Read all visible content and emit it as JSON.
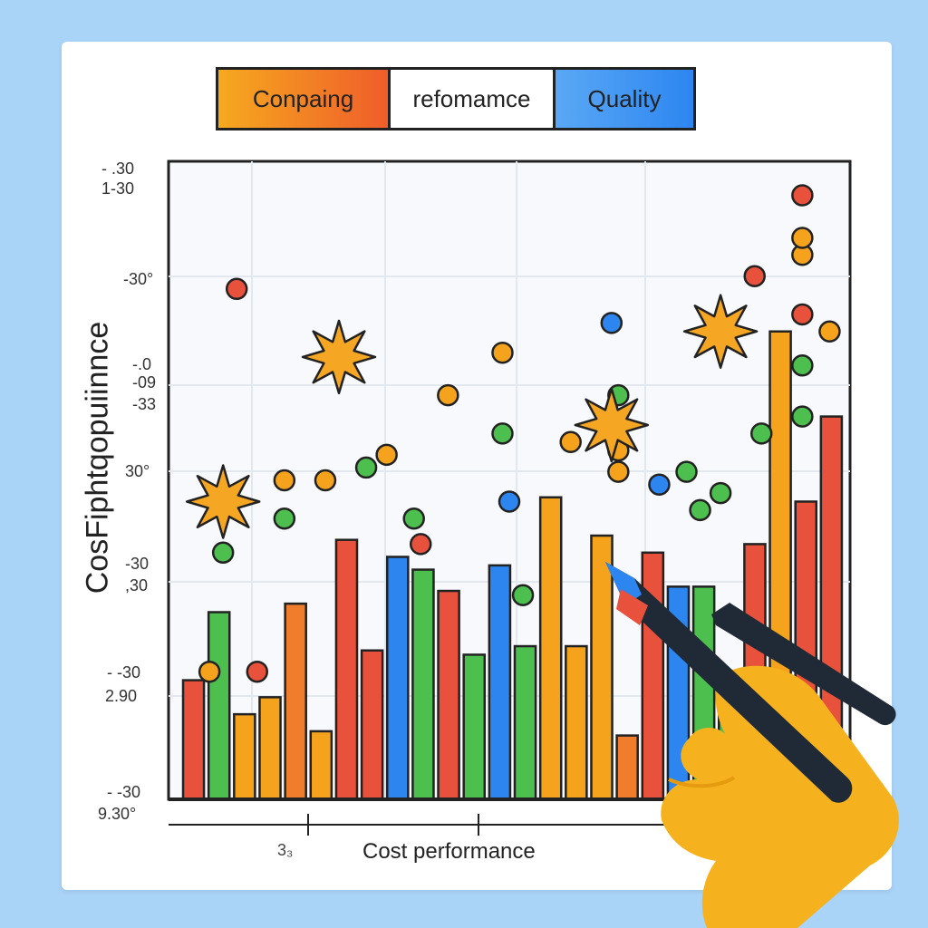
{
  "legend": {
    "items": [
      {
        "label": "Conpaing",
        "color": "#f39a22"
      },
      {
        "label": "refomamce",
        "color": "#ffffff"
      },
      {
        "label": "Quality",
        "color": "#2d86f0"
      }
    ]
  },
  "chart_data": {
    "type": "bar",
    "title": "",
    "xlabel": "Cost performance",
    "ylabel": "CosFiphtqopuiinnce",
    "x_tick_label": "3₃",
    "y_tick_labels": [
      "- .30",
      "1-30",
      "-30°",
      "-.0",
      "-09",
      "-33",
      "30°",
      "-30",
      ",30",
      "- -30",
      "2.90",
      "- -30",
      "9.30°"
    ],
    "bars": [
      {
        "color": "#e8513b",
        "value": 28
      },
      {
        "color": "#4cbf4f",
        "value": 44
      },
      {
        "color": "#f5a31c",
        "value": 20
      },
      {
        "color": "#f5a31c",
        "value": 24
      },
      {
        "color": "#ef7d2b",
        "value": 46
      },
      {
        "color": "#f5a31c",
        "value": 16
      },
      {
        "color": "#e8513b",
        "value": 61
      },
      {
        "color": "#e8513b",
        "value": 35
      },
      {
        "color": "#2d86f0",
        "value": 57
      },
      {
        "color": "#4cbf4f",
        "value": 54
      },
      {
        "color": "#e8513b",
        "value": 49
      },
      {
        "color": "#4cbf4f",
        "value": 34
      },
      {
        "color": "#2d86f0",
        "value": 55
      },
      {
        "color": "#4cbf4f",
        "value": 36
      },
      {
        "color": "#f5a31c",
        "value": 71
      },
      {
        "color": "#f5a31c",
        "value": 36
      },
      {
        "color": "#f5a31c",
        "value": 62
      },
      {
        "color": "#ef7d2b",
        "value": 15
      },
      {
        "color": "#e8513b",
        "value": 58
      },
      {
        "color": "#2d86f0",
        "value": 50
      },
      {
        "color": "#4cbf4f",
        "value": 50
      },
      {
        "color": "#4cbf4f",
        "value": 30
      },
      {
        "color": "#e8513b",
        "value": 60
      },
      {
        "color": "#f5a31c",
        "value": 110
      },
      {
        "color": "#e8513b",
        "value": 70
      },
      {
        "color": "#e8513b",
        "value": 90
      }
    ],
    "markers": [
      {
        "color": "#e8513b",
        "x": 0.1,
        "y": 120
      },
      {
        "color": "#2d86f0",
        "x": 0.08,
        "y": 70
      },
      {
        "color": "#4cbf4f",
        "x": 0.08,
        "y": 58
      },
      {
        "color": "#f5a31c",
        "x": 0.06,
        "y": 30
      },
      {
        "color": "#e8513b",
        "x": 0.13,
        "y": 30
      },
      {
        "color": "#f5a31c",
        "x": 0.17,
        "y": 75
      },
      {
        "color": "#4cbf4f",
        "x": 0.17,
        "y": 66
      },
      {
        "color": "#f5a31c",
        "x": 0.23,
        "y": 75
      },
      {
        "color": "#4cbf4f",
        "x": 0.29,
        "y": 78
      },
      {
        "color": "#f5a31c",
        "x": 0.32,
        "y": 81
      },
      {
        "color": "#e8513b",
        "x": 0.37,
        "y": 60
      },
      {
        "color": "#4cbf4f",
        "x": 0.36,
        "y": 66
      },
      {
        "color": "#f5a31c",
        "x": 0.41,
        "y": 95
      },
      {
        "color": "#f5a31c",
        "x": 0.49,
        "y": 105
      },
      {
        "color": "#4cbf4f",
        "x": 0.49,
        "y": 86
      },
      {
        "color": "#2d86f0",
        "x": 0.5,
        "y": 70
      },
      {
        "color": "#4cbf4f",
        "x": 0.52,
        "y": 48
      },
      {
        "color": "#f5a31c",
        "x": 0.59,
        "y": 84
      },
      {
        "color": "#2d86f0",
        "x": 0.65,
        "y": 112
      },
      {
        "color": "#4cbf4f",
        "x": 0.66,
        "y": 95
      },
      {
        "color": "#f5a31c",
        "x": 0.66,
        "y": 82
      },
      {
        "color": "#f5a31c",
        "x": 0.66,
        "y": 77
      },
      {
        "color": "#2d86f0",
        "x": 0.72,
        "y": 74
      },
      {
        "color": "#4cbf4f",
        "x": 0.76,
        "y": 77
      },
      {
        "color": "#4cbf4f",
        "x": 0.78,
        "y": 68
      },
      {
        "color": "#e8513b",
        "x": 0.86,
        "y": 123
      },
      {
        "color": "#4cbf4f",
        "x": 0.87,
        "y": 86
      },
      {
        "color": "#4cbf4f",
        "x": 0.81,
        "y": 72
      },
      {
        "color": "#f5a31c",
        "x": 0.93,
        "y": 128
      },
      {
        "color": "#e8513b",
        "x": 0.93,
        "y": 114
      },
      {
        "color": "#4cbf4f",
        "x": 0.93,
        "y": 102
      },
      {
        "color": "#4cbf4f",
        "x": 0.93,
        "y": 90
      },
      {
        "color": "#f5a31c",
        "x": 0.97,
        "y": 110
      },
      {
        "color": "#f5a31c",
        "x": 0.93,
        "y": 132
      },
      {
        "color": "#e8513b",
        "x": 0.93,
        "y": 142
      }
    ],
    "stars": [
      {
        "x": 0.08,
        "y": 70
      },
      {
        "x": 0.25,
        "y": 104
      },
      {
        "x": 0.65,
        "y": 88
      },
      {
        "x": 0.81,
        "y": 110
      }
    ],
    "ylim": [
      0,
      150
    ],
    "grid": true
  }
}
